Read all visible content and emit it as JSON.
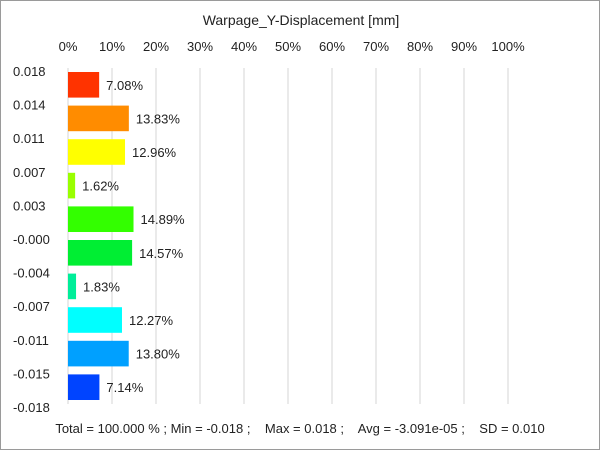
{
  "chart_data": {
    "type": "bar",
    "orientation": "horizontal",
    "title": "Warpage_Y-Displacement [mm]",
    "x_ticks": [
      "0%",
      "10%",
      "20%",
      "30%",
      "40%",
      "50%",
      "60%",
      "70%",
      "80%",
      "90%",
      "100%"
    ],
    "xlim": [
      0,
      100
    ],
    "grid": true,
    "y_ticks": [
      "0.018",
      "0.014",
      "0.011",
      "0.007",
      "0.003",
      "-0.000",
      "-0.004",
      "-0.007",
      "-0.011",
      "-0.015",
      "-0.018"
    ],
    "values": [
      7.08,
      13.83,
      12.96,
      1.62,
      14.89,
      14.57,
      1.83,
      12.27,
      13.8,
      7.14
    ],
    "labels": [
      "7.08%",
      "13.83%",
      "12.96%",
      "1.62%",
      "14.89%",
      "14.57%",
      "1.83%",
      "12.27%",
      "13.80%",
      "7.14%"
    ],
    "colors": [
      "#ff3300",
      "#ff8c00",
      "#ffff00",
      "#99ff00",
      "#33ff00",
      "#00ee33",
      "#00ee99",
      "#00ffff",
      "#00a0ff",
      "#0044ff"
    ]
  },
  "footer": {
    "text": "Total = 100.000 % ; Min = -0.018 ;    Max = 0.018 ;    Avg = -3.091e-05 ;    SD = 0.010"
  }
}
